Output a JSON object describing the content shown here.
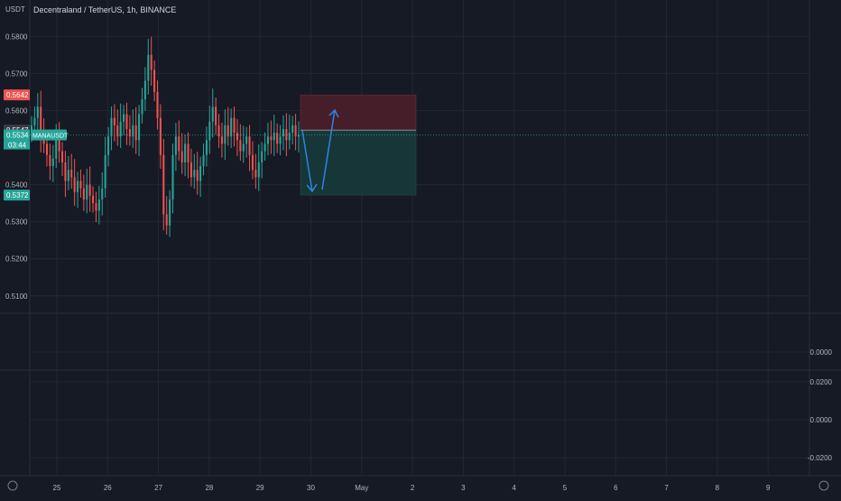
{
  "header": {
    "currency": "USDT",
    "title": "Decentraland / TetherUS, 1h, BINANCE"
  },
  "colors": {
    "background": "#161a25",
    "grid": "#232733",
    "up": "#26a69a",
    "down": "#ef5350",
    "axis_text": "#b2b5be",
    "arrow": "#2e86de",
    "stop_zone": "#4a1f2a",
    "target_zone": "#173a3b"
  },
  "chart_data": {
    "type": "candlestick",
    "symbol": "MANAUSDT",
    "title": "Decentraland / TetherUS, 1h, BINANCE",
    "ylabel": "USDT",
    "y_ticks": [
      "0.5800",
      "0.5700",
      "0.5600",
      "0.5400",
      "0.5300",
      "0.5200",
      "0.5100"
    ],
    "ylim": [
      0.508,
      0.5825
    ],
    "x_ticks": [
      "25",
      "26",
      "27",
      "28",
      "29",
      "30",
      "May",
      "2",
      "3",
      "4",
      "5",
      "6",
      "7",
      "8",
      "9"
    ],
    "series_close_approx": [
      0.556,
      0.558,
      0.561,
      0.553,
      0.551,
      0.548,
      0.545,
      0.547,
      0.552,
      0.549,
      0.546,
      0.541,
      0.544,
      0.542,
      0.538,
      0.541,
      0.539,
      0.536,
      0.54,
      0.537,
      0.535,
      0.533,
      0.536,
      0.539,
      0.548,
      0.553,
      0.558,
      0.556,
      0.553,
      0.557,
      0.559,
      0.555,
      0.553,
      0.556,
      0.552,
      0.559,
      0.563,
      0.568,
      0.575,
      0.571,
      0.565,
      0.558,
      0.548,
      0.532,
      0.529,
      0.536,
      0.548,
      0.553,
      0.549,
      0.546,
      0.551,
      0.546,
      0.542,
      0.544,
      0.541,
      0.545,
      0.548,
      0.552,
      0.557,
      0.561,
      0.556,
      0.553,
      0.551,
      0.556,
      0.553,
      0.558,
      0.554,
      0.552,
      0.549,
      0.551,
      0.553,
      0.548,
      0.544,
      0.542,
      0.546,
      0.549,
      0.551,
      0.553,
      0.552,
      0.554,
      0.551,
      0.553,
      0.555,
      0.552,
      0.554,
      0.556,
      0.553,
      0.5534
    ],
    "price_labels": [
      {
        "value": 0.5642,
        "text": "0.5642",
        "role": "stop"
      },
      {
        "value": 0.5547,
        "text": "0.5547",
        "role": "entry"
      },
      {
        "value": 0.5534,
        "text": "0.5534",
        "role": "last"
      },
      {
        "value": 0.5372,
        "text": "0.5372",
        "role": "target"
      }
    ],
    "last_price_badge": {
      "symbol": "MANAUSDT",
      "countdown": "03:44"
    },
    "position": {
      "entry": 0.5547,
      "stop": 0.5642,
      "target": 0.5372
    },
    "indicator_pane_1": {
      "y_ticks": [
        "0.0000"
      ]
    },
    "indicator_pane_2": {
      "y_ticks": [
        "0.0200",
        "0.0000",
        "-0.0200"
      ]
    }
  }
}
